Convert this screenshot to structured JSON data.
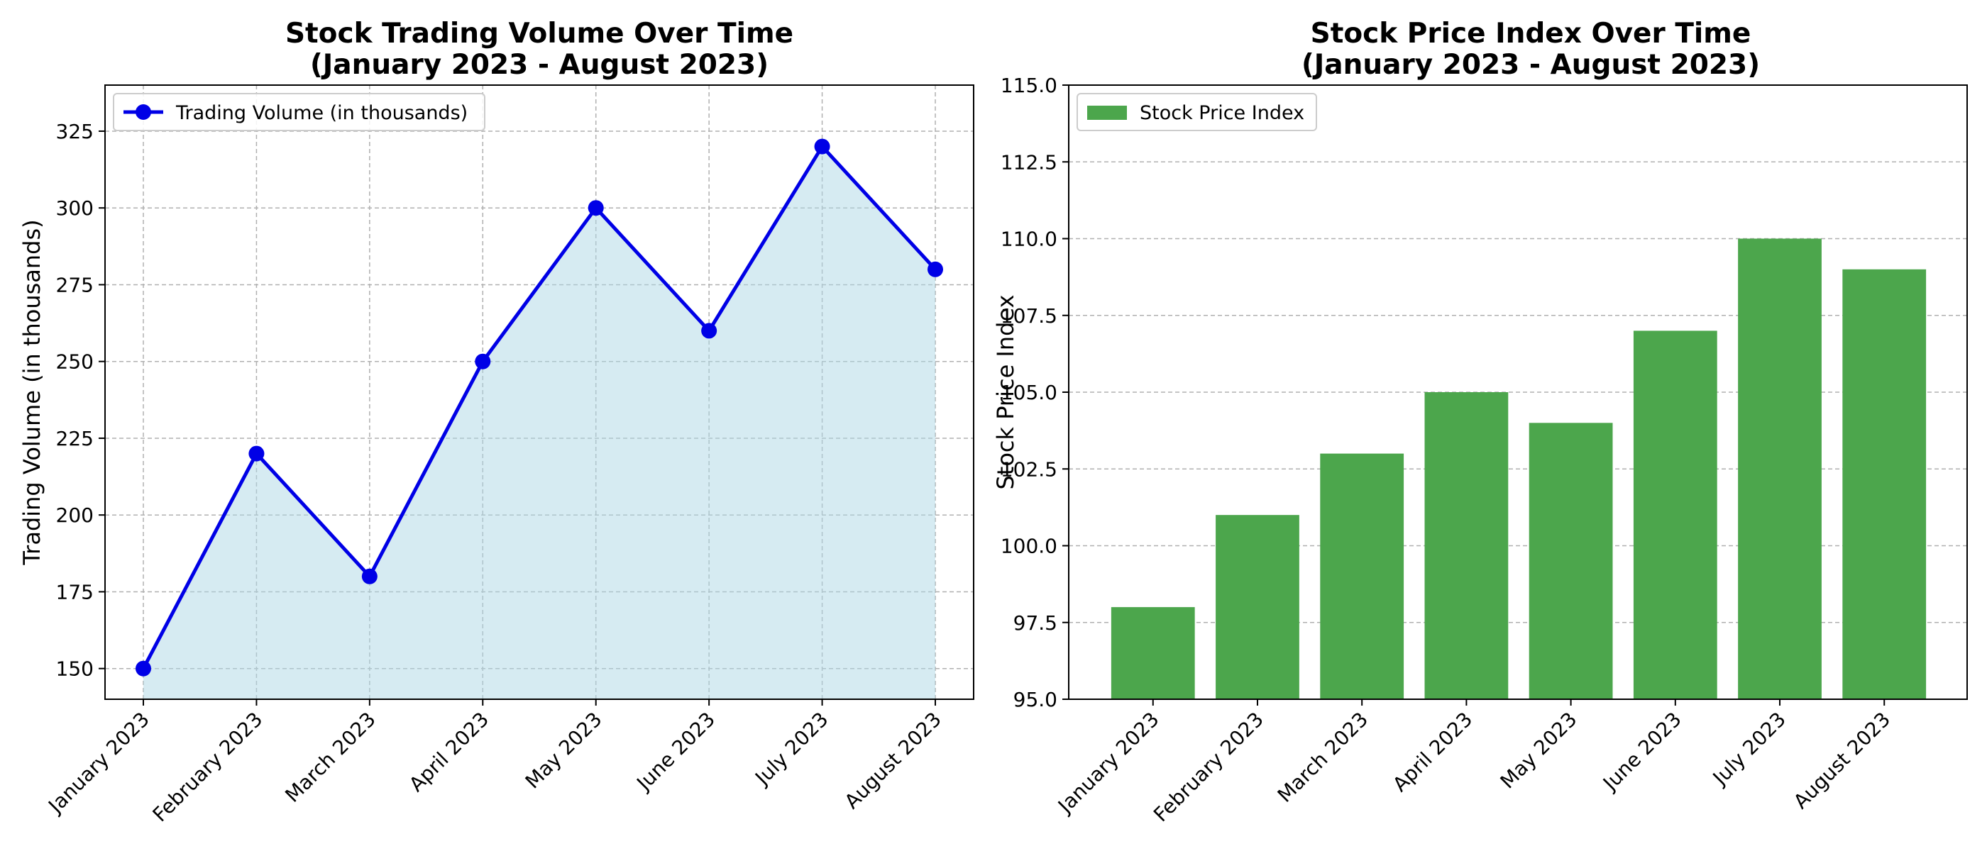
{
  "chart_data": [
    {
      "type": "line",
      "title": [
        "Stock Trading Volume Over Time",
        "(January 2023 - August 2023)"
      ],
      "xlabel": "",
      "ylabel": "Trading Volume (in thousands)",
      "categories": [
        "January 2023",
        "February 2023",
        "March 2023",
        "April 2023",
        "May 2023",
        "June 2023",
        "July 2023",
        "August 2023"
      ],
      "series": [
        {
          "name": "Trading Volume (in thousands)",
          "values": [
            150,
            220,
            180,
            250,
            300,
            260,
            320,
            280
          ]
        }
      ],
      "ylim": [
        140,
        340
      ],
      "yticks": [
        150,
        175,
        200,
        225,
        250,
        275,
        300,
        325
      ],
      "ytick_labels": [
        "150",
        "175",
        "200",
        "225",
        "250",
        "275",
        "300",
        "325"
      ],
      "fill_area": true,
      "grid": true,
      "legend_position": "top-left",
      "colors": {
        "line": "#0000e6",
        "fill": "#add8e6"
      }
    },
    {
      "type": "bar",
      "title": [
        "Stock Price Index Over Time",
        "(January 2023 - August 2023)"
      ],
      "xlabel": "",
      "ylabel": "Stock Price Index",
      "categories": [
        "January 2023",
        "February 2023",
        "March 2023",
        "April 2023",
        "May 2023",
        "June 2023",
        "July 2023",
        "August 2023"
      ],
      "series": [
        {
          "name": "Stock Price Index",
          "values": [
            98,
            101,
            103,
            105,
            104,
            107,
            110,
            109
          ]
        }
      ],
      "ylim": [
        95,
        115
      ],
      "yticks": [
        95,
        97.5,
        100,
        102.5,
        105,
        107.5,
        110,
        112.5,
        115
      ],
      "ytick_labels": [
        "95.0",
        "97.5",
        "100.0",
        "102.5",
        "105.0",
        "107.5",
        "110.0",
        "112.5",
        "115.0"
      ],
      "grid": "y",
      "legend_position": "top-left",
      "colors": {
        "bar": "#4ca64c"
      }
    }
  ]
}
